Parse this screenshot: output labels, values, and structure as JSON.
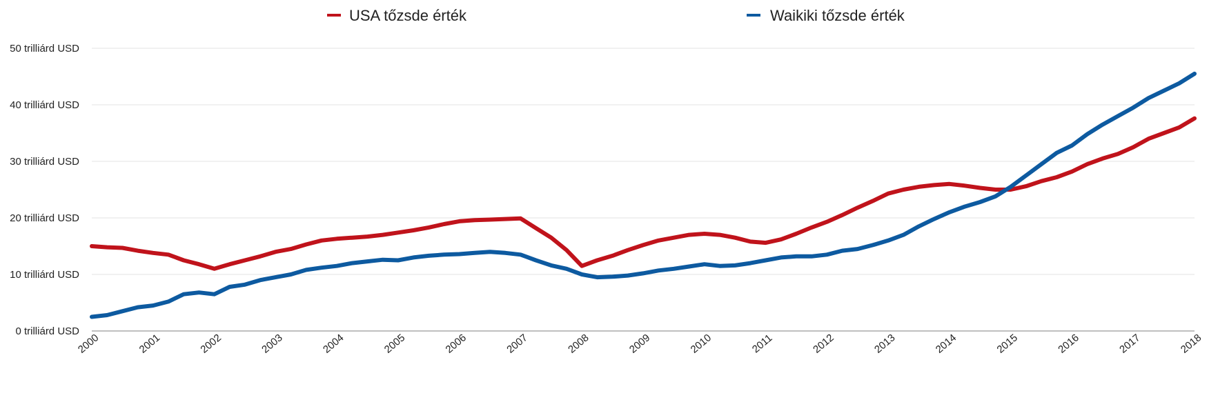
{
  "chart_data": {
    "type": "line",
    "title": "",
    "xlabel": "",
    "ylabel": "",
    "ylim": [
      0,
      50
    ],
    "xlim": [
      2000,
      2018
    ],
    "grid": true,
    "legend_placement": "top",
    "y_ticks": [
      {
        "value": 0,
        "label": "0 trilliárd USD"
      },
      {
        "value": 10,
        "label": "10 trilliárd USD"
      },
      {
        "value": 20,
        "label": "20 trilliárd USD"
      },
      {
        "value": 30,
        "label": "30 trilliárd USD"
      },
      {
        "value": 40,
        "label": "40 trilliárd USD"
      },
      {
        "value": 50,
        "label": "50 trilliárd USD"
      }
    ],
    "x_ticks": [
      "2000",
      "2001",
      "2002",
      "2003",
      "2004",
      "2005",
      "2006",
      "2007",
      "2008",
      "2009",
      "2010",
      "2011",
      "2012",
      "2013",
      "2014",
      "2015",
      "2016",
      "2017",
      "2018"
    ],
    "series": [
      {
        "name": "USA tőzsde érték",
        "color": "#c0131b",
        "x": [
          2000,
          2000.25,
          2000.5,
          2000.75,
          2001,
          2001.25,
          2001.5,
          2001.75,
          2002,
          2002.25,
          2002.5,
          2002.75,
          2003,
          2003.25,
          2003.5,
          2003.75,
          2004,
          2004.25,
          2004.5,
          2004.75,
          2005,
          2005.25,
          2005.5,
          2005.75,
          2006,
          2006.25,
          2006.5,
          2006.75,
          2007,
          2007.25,
          2007.5,
          2007.75,
          2008,
          2008.25,
          2008.5,
          2008.75,
          2009,
          2009.25,
          2009.5,
          2009.75,
          2010,
          2010.25,
          2010.5,
          2010.75,
          2011,
          2011.25,
          2011.5,
          2011.75,
          2012,
          2012.25,
          2012.5,
          2012.75,
          2013,
          2013.25,
          2013.5,
          2013.75,
          2014,
          2014.25,
          2014.5,
          2014.75,
          2015,
          2015.25,
          2015.5,
          2015.75,
          2016,
          2016.25,
          2016.5,
          2016.75,
          2017,
          2017.25,
          2017.5,
          2017.75,
          2018
        ],
        "y": [
          15,
          14.8,
          14.7,
          14.2,
          13.8,
          13.5,
          12.5,
          11.8,
          11,
          11.8,
          12.5,
          13.2,
          14,
          14.5,
          15.3,
          16,
          16.3,
          16.5,
          16.7,
          17,
          17.4,
          17.8,
          18.3,
          18.9,
          19.4,
          19.6,
          19.7,
          19.8,
          19.9,
          18.2,
          16.5,
          14.3,
          11.5,
          12.5,
          13.3,
          14.3,
          15.2,
          16,
          16.5,
          17,
          17.2,
          17,
          16.5,
          15.8,
          15.6,
          16.2,
          17.2,
          18.3,
          19.3,
          20.5,
          21.8,
          23,
          24.3,
          25,
          25.5,
          25.8,
          26,
          25.7,
          25.3,
          25,
          25,
          25.6,
          26.5,
          27.2,
          28.2,
          29.5,
          30.5,
          31.3,
          32.5,
          34,
          35,
          36,
          37.6
        ]
      },
      {
        "name": "Waikiki tőzsde érték",
        "color": "#0d5aa0",
        "x": [
          2000,
          2000.25,
          2000.5,
          2000.75,
          2001,
          2001.25,
          2001.5,
          2001.75,
          2002,
          2002.25,
          2002.5,
          2002.75,
          2003,
          2003.25,
          2003.5,
          2003.75,
          2004,
          2004.25,
          2004.5,
          2004.75,
          2005,
          2005.25,
          2005.5,
          2005.75,
          2006,
          2006.25,
          2006.5,
          2006.75,
          2007,
          2007.25,
          2007.5,
          2007.75,
          2008,
          2008.25,
          2008.5,
          2008.75,
          2009,
          2009.25,
          2009.5,
          2009.75,
          2010,
          2010.25,
          2010.5,
          2010.75,
          2011,
          2011.25,
          2011.5,
          2011.75,
          2012,
          2012.25,
          2012.5,
          2012.75,
          2013,
          2013.25,
          2013.5,
          2013.75,
          2014,
          2014.25,
          2014.5,
          2014.75,
          2015,
          2015.25,
          2015.5,
          2015.75,
          2016,
          2016.25,
          2016.5,
          2016.75,
          2017,
          2017.25,
          2017.5,
          2017.75,
          2018
        ],
        "y": [
          2.5,
          2.8,
          3.5,
          4.2,
          4.5,
          5.2,
          6.5,
          6.8,
          6.5,
          7.8,
          8.2,
          9,
          9.5,
          10,
          10.8,
          11.2,
          11.5,
          12,
          12.3,
          12.6,
          12.5,
          13,
          13.3,
          13.5,
          13.6,
          13.8,
          14,
          13.8,
          13.5,
          12.5,
          11.6,
          11,
          10,
          9.5,
          9.6,
          9.8,
          10.2,
          10.7,
          11,
          11.4,
          11.8,
          11.5,
          11.6,
          12,
          12.5,
          13,
          13.2,
          13.2,
          13.5,
          14.2,
          14.5,
          15.2,
          16,
          17,
          18.5,
          19.8,
          21,
          22,
          22.8,
          23.8,
          25.5,
          27.5,
          29.5,
          31.5,
          32.8,
          34.8,
          36.5,
          38,
          39.5,
          41.2,
          42.5,
          43.8,
          45.5
        ]
      }
    ]
  }
}
